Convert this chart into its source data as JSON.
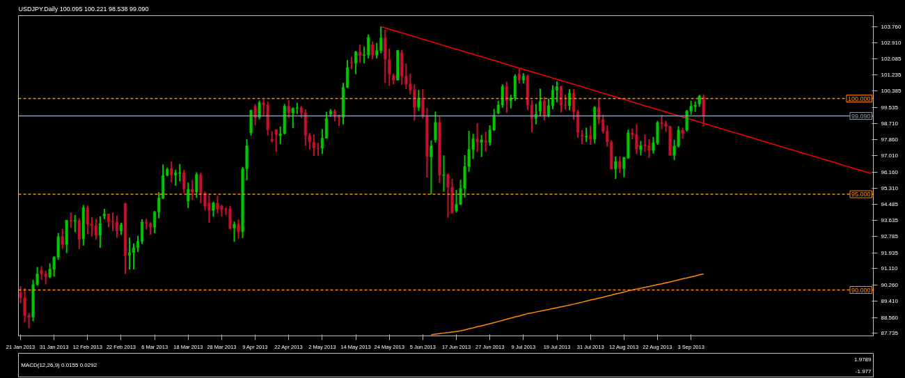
{
  "chart_data": [
    {
      "type": "candlestick",
      "title": "USDJPY.Daily 100.095 100.221 98.538 99.090",
      "categories": [
        "21 Jan 2013",
        null,
        null,
        null,
        null,
        null,
        null,
        null,
        "31 Jan 2013",
        null,
        null,
        null,
        null,
        null,
        null,
        null,
        "12 Feb 2013",
        null,
        null,
        null,
        null,
        null,
        null,
        null,
        "22 Feb 2013",
        null,
        null,
        null,
        null,
        null,
        null,
        null,
        "6 Mar 2013",
        null,
        null,
        null,
        null,
        null,
        null,
        null,
        "18 Mar 2013",
        null,
        null,
        null,
        null,
        null,
        null,
        null,
        "28 Mar 2013",
        null,
        null,
        null,
        null,
        null,
        null,
        null,
        "9 Apr 2013",
        null,
        null,
        null,
        null,
        null,
        null,
        null,
        "22 Apr 2013",
        null,
        null,
        null,
        null,
        null,
        null,
        null,
        "2 May 2013",
        null,
        null,
        null,
        null,
        null,
        null,
        null,
        "14 May 2013",
        null,
        null,
        null,
        null,
        null,
        null,
        null,
        "24 May 2013",
        null,
        null,
        null,
        null,
        null,
        null,
        null,
        "5 Jun 2013",
        null,
        null,
        null,
        null,
        null,
        null,
        null,
        "17 Jun 2013",
        null,
        null,
        null,
        null,
        null,
        null,
        null,
        "27 Jun 2013",
        null,
        null,
        null,
        null,
        null,
        null,
        null,
        "9 Jul 2013",
        null,
        null,
        null,
        null,
        null,
        null,
        null,
        "19 Jul 2013",
        null,
        null,
        null,
        null,
        null,
        null,
        null,
        "31 Jul 2013",
        null,
        null,
        null,
        null,
        null,
        null,
        null,
        "12 Aug 2013",
        null,
        null,
        null,
        null,
        null,
        null,
        null,
        "22 Aug 2013",
        null,
        null,
        null,
        null,
        null,
        null,
        null,
        "3 Sep 2013",
        null,
        null,
        null,
        null,
        null,
        null,
        null,
        null,
        null,
        null,
        null,
        null,
        null,
        null,
        null,
        null,
        null,
        null,
        null,
        null,
        null,
        null,
        null,
        null,
        null,
        null,
        null,
        null,
        null,
        null,
        null,
        null,
        null,
        null,
        null,
        null,
        null,
        null,
        null,
        null,
        null,
        null,
        null
      ],
      "ylim": [
        87.6,
        104.33
      ],
      "yticks": [
        {
          "value": 103.76,
          "label": "103.760"
        },
        {
          "value": 102.91,
          "label": "102.910"
        },
        {
          "value": 102.085,
          "label": "102.085"
        },
        {
          "value": 101.235,
          "label": "101.235"
        },
        {
          "value": 100.385,
          "label": "100.385"
        },
        {
          "value": 99.535,
          "label": "99.535"
        },
        {
          "value": 98.71,
          "label": "98.710"
        },
        {
          "value": 97.86,
          "label": "97.860"
        },
        {
          "value": 97.01,
          "label": "97.010"
        },
        {
          "value": 96.16,
          "label": "96.160"
        },
        {
          "value": 95.31,
          "label": "95.310"
        },
        {
          "value": 94.485,
          "label": "94.485"
        },
        {
          "value": 93.635,
          "label": "93.635"
        },
        {
          "value": 92.785,
          "label": "92.785"
        },
        {
          "value": 91.935,
          "label": "91.935"
        },
        {
          "value": 91.11,
          "label": "91.110"
        },
        {
          "value": 90.26,
          "label": "90.260"
        },
        {
          "value": 89.41,
          "label": "89.410"
        },
        {
          "value": 88.56,
          "label": "88.560"
        },
        {
          "value": 87.735,
          "label": "87.735"
        }
      ],
      "ref_lines": [
        {
          "axis": "y",
          "value": 100.0,
          "label": "100.000",
          "color": "#ff8c00",
          "line_style": "dashed"
        },
        {
          "axis": "y",
          "value": 95.0,
          "label": "95.000",
          "color": "#ff8c00",
          "line_style": "dashed"
        },
        {
          "axis": "y",
          "value": 90.0,
          "label": "90.000",
          "color": "#ff8c00",
          "line_style": "dashed"
        },
        {
          "axis": "y",
          "value": 99.09,
          "label": "99.090",
          "color": "#8a9aae",
          "line_style": "solid"
        }
      ],
      "series": [
        {
          "type": "line",
          "color": "#ff8c00",
          "values": [
            null,
            null,
            null,
            null,
            null,
            null,
            null,
            null,
            null,
            null,
            null,
            null,
            null,
            null,
            null,
            null,
            null,
            null,
            null,
            null,
            null,
            null,
            null,
            null,
            null,
            null,
            null,
            null,
            null,
            null,
            null,
            null,
            null,
            null,
            null,
            null,
            null,
            null,
            null,
            null,
            null,
            null,
            null,
            null,
            null,
            null,
            null,
            null,
            null,
            null,
            null,
            null,
            null,
            null,
            null,
            null,
            null,
            null,
            null,
            null,
            null,
            null,
            null,
            null,
            null,
            null,
            null,
            null,
            null,
            null,
            null,
            null,
            null,
            null,
            null,
            null,
            null,
            null,
            null,
            null,
            null,
            null,
            null,
            null,
            null,
            null,
            null,
            null,
            null,
            null,
            null,
            null,
            null,
            null,
            null,
            null,
            null,
            null,
            87.66,
            87.69,
            87.72,
            87.75,
            87.77,
            87.8,
            87.83,
            87.86,
            87.91,
            87.97,
            88.02,
            88.08,
            88.13,
            88.18,
            88.24,
            88.29,
            88.35,
            88.41,
            88.47,
            88.53,
            88.59,
            88.64,
            88.7,
            88.76,
            88.8,
            88.85,
            88.89,
            88.94,
            88.98,
            89.03,
            89.07,
            89.12,
            89.16,
            89.21,
            89.26,
            89.31,
            89.36,
            89.42,
            89.47,
            89.52,
            89.57,
            89.62,
            89.68,
            89.73,
            89.79,
            89.84,
            89.89,
            89.95,
            90.0,
            90.05,
            90.09,
            90.14,
            90.18,
            90.23,
            90.28,
            90.32,
            90.37,
            90.42,
            90.47,
            90.53,
            90.58,
            90.63,
            90.68,
            90.73,
            90.79,
            90.84,
            null,
            null,
            null,
            null,
            null,
            null,
            null,
            null,
            null,
            null,
            null,
            null,
            null,
            null,
            null,
            null,
            null,
            null,
            null,
            null,
            null,
            null,
            null,
            null,
            null,
            null,
            null,
            null,
            null,
            null,
            null,
            null,
            null,
            null,
            null,
            null,
            null,
            null,
            null,
            null
          ]
        },
        {
          "type": "line",
          "color": "#ff0000",
          "values": [
            null,
            null,
            null,
            null,
            null,
            null,
            null,
            null,
            null,
            null,
            null,
            null,
            null,
            null,
            null,
            null,
            null,
            null,
            null,
            null,
            null,
            null,
            null,
            null,
            null,
            null,
            null,
            null,
            null,
            null,
            null,
            null,
            null,
            null,
            null,
            null,
            null,
            null,
            null,
            null,
            null,
            null,
            null,
            null,
            null,
            null,
            null,
            null,
            null,
            null,
            null,
            null,
            null,
            null,
            null,
            null,
            null,
            null,
            null,
            null,
            null,
            null,
            null,
            null,
            null,
            null,
            null,
            null,
            null,
            null,
            null,
            null,
            null,
            null,
            null,
            null,
            null,
            null,
            null,
            null,
            null,
            null,
            null,
            null,
            null,
            null,
            103.76,
            103.69,
            103.63,
            103.56,
            103.5,
            103.43,
            103.37,
            103.3,
            103.24,
            103.17,
            103.1,
            103.03,
            102.97,
            102.9,
            102.84,
            102.77,
            102.71,
            102.64,
            102.58,
            102.51,
            102.45,
            102.38,
            102.32,
            102.25,
            102.19,
            102.12,
            102.06,
            101.99,
            101.93,
            101.86,
            101.79,
            101.72,
            101.66,
            101.59,
            101.53,
            101.46,
            101.4,
            101.33,
            101.27,
            101.2,
            101.14,
            101.07,
            101.01,
            100.94,
            100.88,
            100.81,
            100.75,
            100.68,
            100.62,
            100.55,
            100.48,
            100.41,
            100.35,
            100.28,
            100.22,
            100.15,
            100.09,
            100.02,
            99.96,
            99.89,
            99.82,
            99.75,
            99.69,
            99.62,
            99.56,
            99.49,
            99.43,
            99.36,
            99.3,
            99.23,
            99.17,
            99.1,
            99.04,
            98.97,
            98.91,
            98.84,
            98.78,
            98.71,
            98.65,
            98.58,
            98.51,
            98.44,
            98.38,
            98.31,
            98.25,
            98.18,
            98.12,
            98.05,
            97.99,
            97.92,
            97.85,
            97.78,
            97.72,
            97.65,
            97.59,
            97.52,
            97.46,
            97.39,
            97.33,
            97.26,
            97.2,
            97.13,
            97.07,
            97.0,
            96.94,
            96.87,
            96.81,
            96.74,
            96.68,
            96.61,
            96.54,
            96.47,
            96.41,
            96.34,
            96.28,
            96.21,
            96.15,
            96.08
          ]
        },
        {
          "type": "candlestick",
          "colors": [
            "#c8102e",
            "#c8102e",
            "#c8102e",
            "#00c800",
            "#00c800",
            "#c8102e",
            "#c8102e",
            "#00c800",
            "#00c800",
            "#00c800",
            "#c8102e",
            "#00c800",
            "#c8102e",
            "#00c800",
            "#c8102e",
            "#00c800",
            "#c8102e",
            "#c8102e",
            "#c8102e",
            "#00c800",
            "#00c800",
            "#c8102e",
            "#c8102e",
            "#c8102e",
            "#00c800",
            "#c8102e",
            "#00c800",
            "#00c800",
            "#00c800",
            "#00c800",
            "#c8102e",
            "#c8102e",
            "#00c800",
            "#00c800",
            "#00c800",
            "#00c800",
            "#c8102e",
            "#00c800",
            "#00c800",
            "#c8102e",
            "#00c800",
            "#c8102e",
            "#00c800",
            "#c8102e",
            "#c8102e",
            "#c8102e",
            "#00c800",
            "#c8102e",
            "#c8102e",
            "#c8102e",
            "#c8102e",
            "#00c800",
            "#c8102e",
            "#00c800",
            "#00c800",
            "#00c800",
            "#c8102e",
            "#00c800",
            "#c8102e",
            "#c8102e",
            "#c8102e",
            "#c8102e",
            "#00c800",
            "#00c800",
            "#c8102e",
            "#00c800",
            "#00c800",
            "#c8102e",
            "#c8102e",
            "#c8102e",
            "#c8102e",
            "#c8102e",
            "#00c800",
            "#00c800",
            "#00c800",
            "#c8102e",
            "#c8102e",
            "#00c800",
            "#00c800",
            "#c8102e",
            "#00c800",
            "#c8102e",
            "#00c800",
            "#00c800",
            "#c8102e",
            "#00c800",
            "#00c800",
            "#c8102e",
            "#c8102e",
            "#c8102e",
            "#00c800",
            "#c8102e",
            "#c8102e",
            "#c8102e",
            "#c8102e",
            "#00c800",
            "#c8102e",
            "#c8102e",
            "#00c800",
            "#00c800",
            "#c8102e",
            "#00c800",
            "#c8102e",
            "#c8102e",
            "#00c800",
            "#00c800",
            "#00c800",
            "#00c800",
            "#00c800",
            "#c8102e",
            "#00c800",
            "#c8102e",
            "#00c800",
            "#00c800",
            "#00c800",
            "#00c800",
            "#c8102e",
            "#00c800",
            "#00c800",
            "#c8102e",
            "#00c800",
            "#c8102e",
            "#c8102e",
            "#00c800",
            "#00c800",
            "#c8102e",
            "#00c800",
            "#00c800",
            "#00c800",
            "#c8102e",
            "#c8102e",
            "#00c800",
            "#c8102e",
            "#c8102e",
            "#c8102e",
            "#00c800",
            "#c8102e",
            "#00c800",
            "#c8102e",
            "#c8102e",
            "#c8102e",
            "#c8102e",
            "#00c800",
            "#c8102e",
            "#00c800",
            "#00c800",
            "#c8102e",
            "#c8102e",
            "#00c800",
            "#c8102e",
            "#c8102e",
            "#00c800",
            "#00c800",
            "#c8102e",
            "#c8102e",
            "#c8102e",
            "#00c800",
            "#00c800",
            "#c8102e",
            "#00c800",
            "#00c800",
            "#00c800",
            "#00c800",
            "#c8102e",
            null,
            null,
            null,
            null,
            null,
            null,
            null,
            null,
            null,
            null,
            null,
            null,
            null,
            null,
            null,
            null,
            null,
            null,
            null,
            null,
            null,
            null,
            null,
            null,
            null,
            null,
            null,
            null,
            null,
            null,
            null,
            null,
            null,
            null,
            null,
            null,
            null,
            null,
            null,
            null
          ],
          "ohlc": [
            [
              89.86,
              90.2,
              89.31,
              89.59
            ],
            [
              89.59,
              90.09,
              88.32,
              88.66
            ],
            [
              88.66,
              88.8,
              88.0,
              88.58
            ],
            [
              88.58,
              90.53,
              88.36,
              90.28
            ],
            [
              90.28,
              91.2,
              90.23,
              90.84
            ],
            [
              91.04,
              91.24,
              90.53,
              90.84
            ],
            [
              90.84,
              91.01,
              90.29,
              90.69
            ],
            [
              90.69,
              91.39,
              90.62,
              91.09
            ],
            [
              91.09,
              91.76,
              90.7,
              91.71
            ],
            [
              91.71,
              92.97,
              91.57,
              92.79
            ],
            [
              92.79,
              93.18,
              92.15,
              92.38
            ],
            [
              92.38,
              93.66,
              91.93,
              93.64
            ],
            [
              93.64,
              94.05,
              93.25,
              93.6
            ],
            [
              93.6,
              93.92,
              93.02,
              93.63
            ],
            [
              93.63,
              93.75,
              92.14,
              92.65
            ],
            [
              92.68,
              94.44,
              92.32,
              94.3
            ],
            [
              94.3,
              94.41,
              92.91,
              93.44
            ],
            [
              93.44,
              93.79,
              92.79,
              93.36
            ],
            [
              93.36,
              93.71,
              92.62,
              92.86
            ],
            [
              92.86,
              93.85,
              92.19,
              93.47
            ],
            [
              93.86,
              94.24,
              93.68,
              93.97
            ],
            [
              93.97,
              93.97,
              93.27,
              93.57
            ],
            [
              93.57,
              94.05,
              93.08,
              93.55
            ],
            [
              93.55,
              93.88,
              92.73,
              93.08
            ],
            [
              93.08,
              93.51,
              92.88,
              93.4
            ],
            [
              94.53,
              94.55,
              90.85,
              91.8
            ],
            [
              91.8,
              92.74,
              91.07,
              91.95
            ],
            [
              91.95,
              92.43,
              91.07,
              92.21
            ],
            [
              92.21,
              92.84,
              91.98,
              92.54
            ],
            [
              92.54,
              93.69,
              92.4,
              93.55
            ],
            [
              93.55,
              93.71,
              93.16,
              93.47
            ],
            [
              93.47,
              93.55,
              92.88,
              93.27
            ],
            [
              93.27,
              94.13,
              92.96,
              94.07
            ],
            [
              94.07,
              95.11,
              93.75,
              94.8
            ],
            [
              94.8,
              96.56,
              94.75,
              95.98
            ],
            [
              95.98,
              96.39,
              95.95,
              96.3
            ],
            [
              96.34,
              96.72,
              95.61,
              96.0
            ],
            [
              96.0,
              96.28,
              95.45,
              96.12
            ],
            [
              96.09,
              96.58,
              95.67,
              96.12
            ],
            [
              96.12,
              96.28,
              95.06,
              95.28
            ],
            [
              94.64,
              95.61,
              94.27,
              95.26
            ],
            [
              95.26,
              95.75,
              94.7,
              95.11
            ],
            [
              95.11,
              96.15,
              94.81,
              96.03
            ],
            [
              96.03,
              96.12,
              94.53,
              95.03
            ],
            [
              95.03,
              95.14,
              94.16,
              94.39
            ],
            [
              94.55,
              94.94,
              93.52,
              94.16
            ],
            [
              94.16,
              94.61,
              93.83,
              94.55
            ],
            [
              94.55,
              94.92,
              93.99,
              94.22
            ],
            [
              94.39,
              94.44,
              93.83,
              94.2
            ],
            [
              94.22,
              94.31,
              93.91,
              94.2
            ],
            [
              94.24,
              94.39,
              93.16,
              93.21
            ],
            [
              93.24,
              93.57,
              92.52,
              93.44
            ],
            [
              93.44,
              93.68,
              92.68,
              93.05
            ],
            [
              93.05,
              96.43,
              92.71,
              96.34
            ],
            [
              96.34,
              97.87,
              95.73,
              97.53
            ],
            [
              98.21,
              99.41,
              98.07,
              99.38
            ],
            [
              99.58,
              99.71,
              98.59,
              99.0
            ],
            [
              99.02,
              99.89,
              98.91,
              99.78
            ],
            [
              99.78,
              99.97,
              99.13,
              99.67
            ],
            [
              99.67,
              99.84,
              98.07,
              98.37
            ],
            [
              97.87,
              98.29,
              97.7,
              97.79
            ],
            [
              98.37,
              98.4,
              97.21,
              98.13
            ],
            [
              98.07,
              98.54,
              97.62,
              98.15
            ],
            [
              98.18,
              99.71,
              98.13,
              99.6
            ],
            [
              99.6,
              99.91,
              98.98,
              99.24
            ],
            [
              99.24,
              99.54,
              98.46,
              99.49
            ],
            [
              99.49,
              99.78,
              99.19,
              99.52
            ],
            [
              99.52,
              99.6,
              98.98,
              99.26
            ],
            [
              99.26,
              99.44,
              97.54,
              98.07
            ],
            [
              98.07,
              98.2,
              97.34,
              97.73
            ],
            [
              97.73,
              98.12,
              97.01,
              97.4
            ],
            [
              97.4,
              97.68,
              97.01,
              97.38
            ],
            [
              97.4,
              98.4,
              97.1,
              97.93
            ],
            [
              97.93,
              99.3,
              97.9,
              98.96
            ],
            [
              99.18,
              99.46,
              99.05,
              99.35
            ],
            [
              99.35,
              99.44,
              98.81,
              99.13
            ],
            [
              99.05,
              99.16,
              98.57,
              99.02
            ],
            [
              99.02,
              100.82,
              98.65,
              100.58
            ],
            [
              100.58,
              102.01,
              100.56,
              101.61
            ],
            [
              101.88,
              102.18,
              101.53,
              101.85
            ],
            [
              101.85,
              102.48,
              101.27,
              102.44
            ],
            [
              102.44,
              102.81,
              101.86,
              102.25
            ],
            [
              102.25,
              102.72,
              101.84,
              102.28
            ],
            [
              102.28,
              103.35,
              102.09,
              103.2
            ],
            [
              102.81,
              102.98,
              102.05,
              102.28
            ],
            [
              102.28,
              102.9,
              102.09,
              102.5
            ],
            [
              102.5,
              103.76,
              102.37,
              103.17
            ],
            [
              103.17,
              103.59,
              100.82,
              102.05
            ],
            [
              102.03,
              102.61,
              100.67,
              101.27
            ],
            [
              101.19,
              101.3,
              100.75,
              100.97
            ],
            [
              100.97,
              102.53,
              100.94,
              102.51
            ],
            [
              102.39,
              102.55,
              100.72,
              101.17
            ],
            [
              101.17,
              101.83,
              100.49,
              100.75
            ],
            [
              100.75,
              101.3,
              100.21,
              100.45
            ],
            [
              100.45,
              100.75,
              98.85,
              99.54
            ],
            [
              99.54,
              100.45,
              99.35,
              100.02
            ],
            [
              100.02,
              100.49,
              98.96,
              99.07
            ],
            [
              99.07,
              99.5,
              95.87,
              96.97
            ],
            [
              96.95,
              97.81,
              94.99,
              97.53
            ],
            [
              97.84,
              99.32,
              97.7,
              98.76
            ],
            [
              98.76,
              99.07,
              95.59,
              96.0
            ],
            [
              95.98,
              97.03,
              95.13,
              96.02
            ],
            [
              96.02,
              96.09,
              93.77,
              95.37
            ],
            [
              95.37,
              95.81,
              93.97,
              94.05
            ],
            [
              94.14,
              95.22,
              94.05,
              94.47
            ],
            [
              94.47,
              95.76,
              94.44,
              95.31
            ],
            [
              95.31,
              97.04,
              94.83,
              96.45
            ],
            [
              96.45,
              98.31,
              96.17,
              97.34
            ],
            [
              97.34,
              98.16,
              96.84,
              97.9
            ],
            [
              97.9,
              98.72,
              97.21,
              97.73
            ],
            [
              97.71,
              98.09,
              96.95,
              97.84
            ],
            [
              97.79,
              98.26,
              97.23,
              97.71
            ],
            [
              97.71,
              98.6,
              97.54,
              98.35
            ],
            [
              98.35,
              99.46,
              98.32,
              99.13
            ],
            [
              99.24,
              99.88,
              99.18,
              99.66
            ],
            [
              99.66,
              100.75,
              99.52,
              100.63
            ],
            [
              100.63,
              100.88,
              99.26,
              99.89
            ],
            [
              99.89,
              100.19,
              99.48,
              100.04
            ],
            [
              100.04,
              101.27,
              99.88,
              101.17
            ],
            [
              101.28,
              101.56,
              100.78,
              100.97
            ],
            [
              100.97,
              101.33,
              100.78,
              101.16
            ],
            [
              101.16,
              101.25,
              99.41,
              99.66
            ],
            [
              99.66,
              99.93,
              98.24,
              98.96
            ],
            [
              98.96,
              99.72,
              98.66,
              99.18
            ],
            [
              99.35,
              100.52,
              99.07,
              99.85
            ],
            [
              99.85,
              100.08,
              98.87,
              99.1
            ],
            [
              99.1,
              99.99,
              99.02,
              99.63
            ],
            [
              99.63,
              100.69,
              99.44,
              100.43
            ],
            [
              100.43,
              100.89,
              99.8,
              100.63
            ],
            [
              100.63,
              100.67,
              99.27,
              99.66
            ],
            [
              99.66,
              100.21,
              99.43,
              99.63
            ],
            [
              99.63,
              100.49,
              99.38,
              100.28
            ],
            [
              100.28,
              100.49,
              98.88,
              99.3
            ],
            [
              99.3,
              99.41,
              97.96,
              98.24
            ],
            [
              98.07,
              98.35,
              97.62,
              98.03
            ],
            [
              97.99,
              98.48,
              97.73,
              98.03
            ],
            [
              98.07,
              98.57,
              97.57,
              97.87
            ],
            [
              97.87,
              99.6,
              97.66,
              99.54
            ],
            [
              99.54,
              100.02,
              98.65,
              98.9
            ],
            [
              98.9,
              99.16,
              98.18,
              98.29
            ],
            [
              98.29,
              98.59,
              97.48,
              97.73
            ],
            [
              97.73,
              97.82,
              96.32,
              96.32
            ],
            [
              96.32,
              96.97,
              95.8,
              96.71
            ],
            [
              96.71,
              96.97,
              96.11,
              96.34
            ],
            [
              96.34,
              96.95,
              95.89,
              96.92
            ],
            [
              96.9,
              98.37,
              96.86,
              98.2
            ],
            [
              98.2,
              98.43,
              97.87,
              98.12
            ],
            [
              98.12,
              98.66,
              97.09,
              97.34
            ],
            [
              97.34,
              97.79,
              97.03,
              97.53
            ],
            [
              97.59,
              98.12,
              97.23,
              97.54
            ],
            [
              97.54,
              97.87,
              96.9,
              97.29
            ],
            [
              97.29,
              97.99,
              97.12,
              97.68
            ],
            [
              97.68,
              98.83,
              97.57,
              98.74
            ],
            [
              98.74,
              99.15,
              98.4,
              98.7
            ],
            [
              98.7,
              98.85,
              98.26,
              98.55
            ],
            [
              98.55,
              98.57,
              97.01,
              97.03
            ],
            [
              97.03,
              97.85,
              96.78,
              97.51
            ],
            [
              97.51,
              98.55,
              97.45,
              98.35
            ],
            [
              98.35,
              98.48,
              97.9,
              98.18
            ],
            [
              98.35,
              99.41,
              98.27,
              99.35
            ],
            [
              99.35,
              99.88,
              99.16,
              99.6
            ],
            [
              99.58,
              99.85,
              99.3,
              99.66
            ],
            [
              99.71,
              100.19,
              99.57,
              100.13
            ],
            [
              100.095,
              100.221,
              98.538,
              99.09
            ],
            null,
            null,
            null,
            null,
            null,
            null,
            null,
            null,
            null,
            null,
            null,
            null,
            null,
            null,
            null,
            null,
            null,
            null,
            null,
            null,
            null,
            null,
            null,
            null,
            null,
            null,
            null,
            null,
            null,
            null,
            null,
            null,
            null,
            null,
            null,
            null,
            null,
            null,
            null,
            null
          ]
        }
      ]
    },
    {
      "type": "other",
      "title": "MACD(12,26,9) 0.0155 0.0292",
      "annotations": [
        "1.9789",
        "-1.977"
      ]
    }
  ]
}
